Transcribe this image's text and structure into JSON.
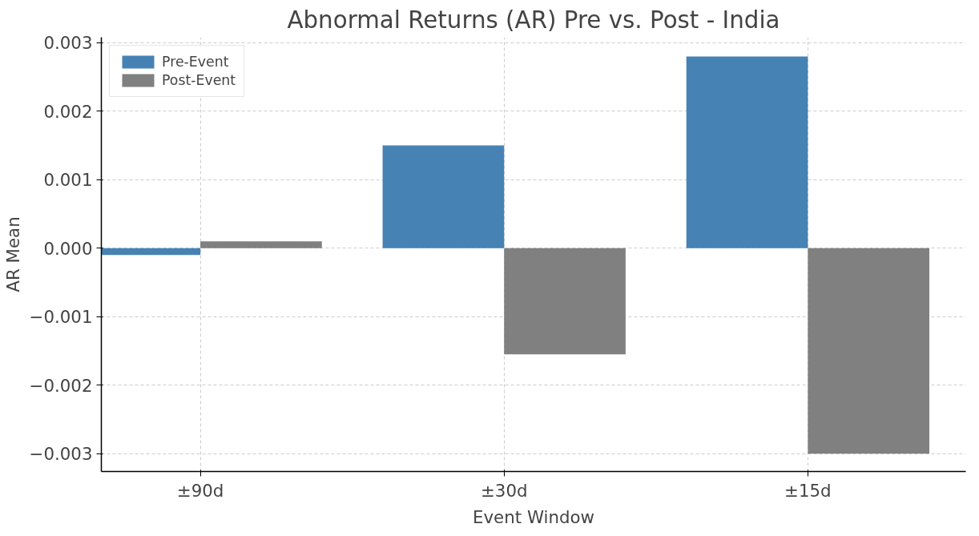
{
  "chart_data": {
    "type": "bar",
    "title": "Abnormal Returns (AR) Pre vs. Post - India",
    "xlabel": "Event Window",
    "ylabel": "AR Mean",
    "categories": [
      "±90d",
      "±30d",
      "±15d"
    ],
    "series": [
      {
        "name": "Pre-Event",
        "color": "#4682b4",
        "values": [
          -0.0001,
          0.0015,
          0.0028
        ]
      },
      {
        "name": "Post-Event",
        "color": "#808080",
        "values": [
          0.0001,
          -0.00155,
          -0.003
        ]
      }
    ],
    "ylim": [
      -0.00326,
      0.00308
    ],
    "yticks": [
      {
        "value": -0.003,
        "label": "−0.003"
      },
      {
        "value": -0.002,
        "label": "−0.002"
      },
      {
        "value": -0.001,
        "label": "−0.001"
      },
      {
        "value": 0,
        "label": "0.000"
      },
      {
        "value": 0.001,
        "label": "0.001"
      },
      {
        "value": 0.002,
        "label": "0.002"
      },
      {
        "value": 0.003,
        "label": "0.003"
      }
    ],
    "grid": true,
    "legend": "top left"
  }
}
